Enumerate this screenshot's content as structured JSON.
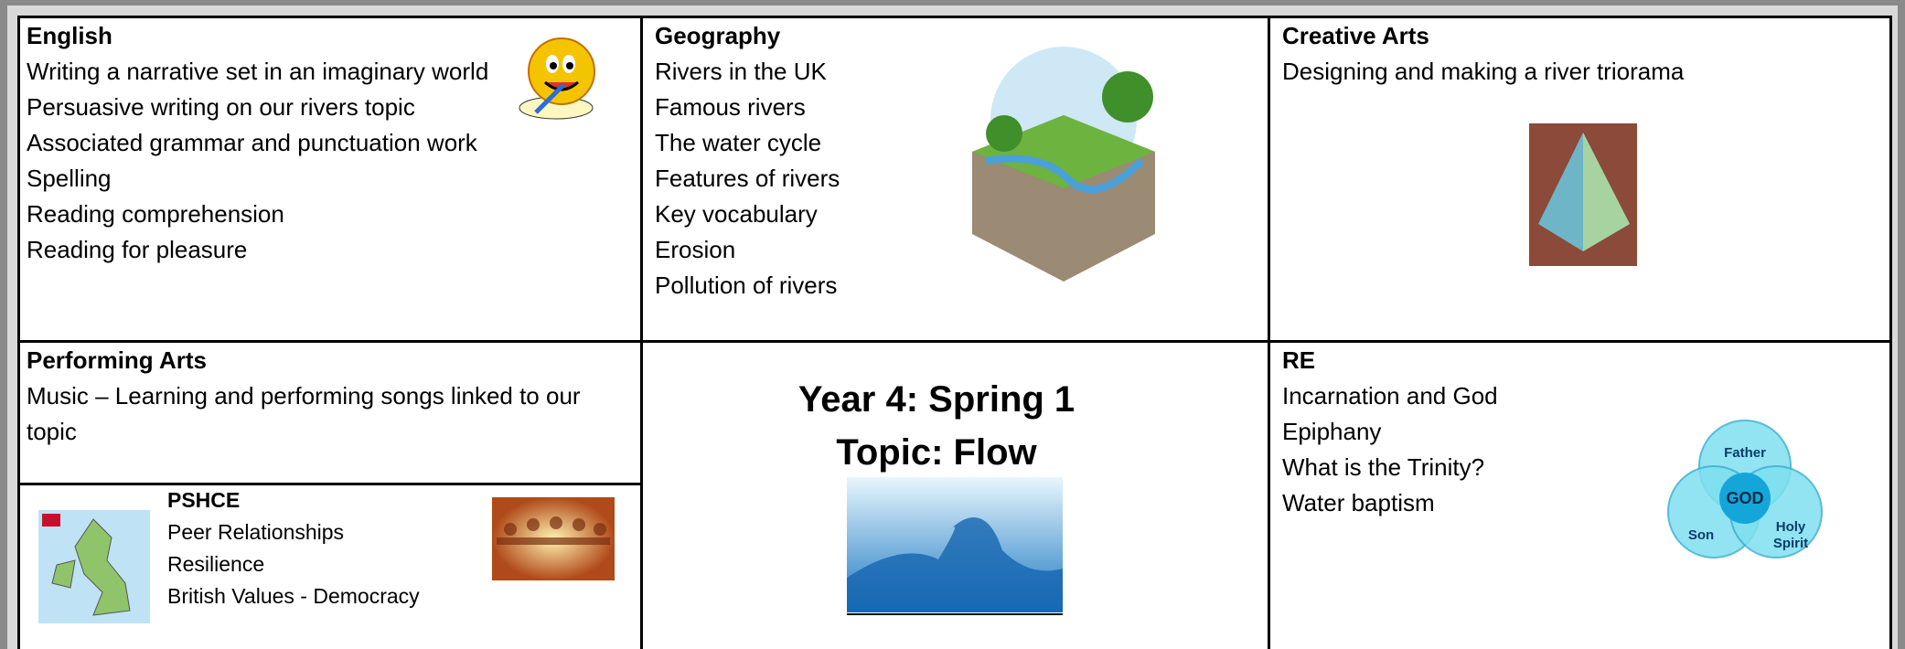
{
  "sections": {
    "english": {
      "heading": "English",
      "items": [
        "Writing a narrative set in an imaginary world",
        "Persuasive writing on our rivers topic",
        "Associated grammar and punctuation work",
        "Spelling",
        "Reading comprehension",
        "Reading for pleasure"
      ]
    },
    "geography": {
      "heading": "Geography",
      "items": [
        "Rivers in the UK",
        "Famous rivers",
        "The water cycle",
        "Features of rivers",
        "Key vocabulary",
        "Erosion",
        "Pollution of rivers"
      ]
    },
    "creative_arts": {
      "heading": "Creative Arts",
      "items": [
        "Designing and making a river triorama"
      ]
    },
    "performing_arts": {
      "heading": "Performing Arts",
      "items": [
        "Music – Learning and performing songs linked to our topic"
      ]
    },
    "pshce": {
      "heading": "PSHCE",
      "items": [
        "Peer Relationships",
        "Resilience",
        "British Values - Democracy"
      ]
    },
    "re": {
      "heading": "RE",
      "items": [
        "Incarnation and God",
        "Epiphany",
        "What is the Trinity?",
        "Water baptism"
      ]
    }
  },
  "center": {
    "title_line1": "Year 4: Spring 1",
    "title_line2": "Topic: Flow"
  },
  "trinity": {
    "top": "Father",
    "center": "GOD",
    "left": "Son",
    "right": [
      "Holy",
      "Spirit"
    ]
  }
}
